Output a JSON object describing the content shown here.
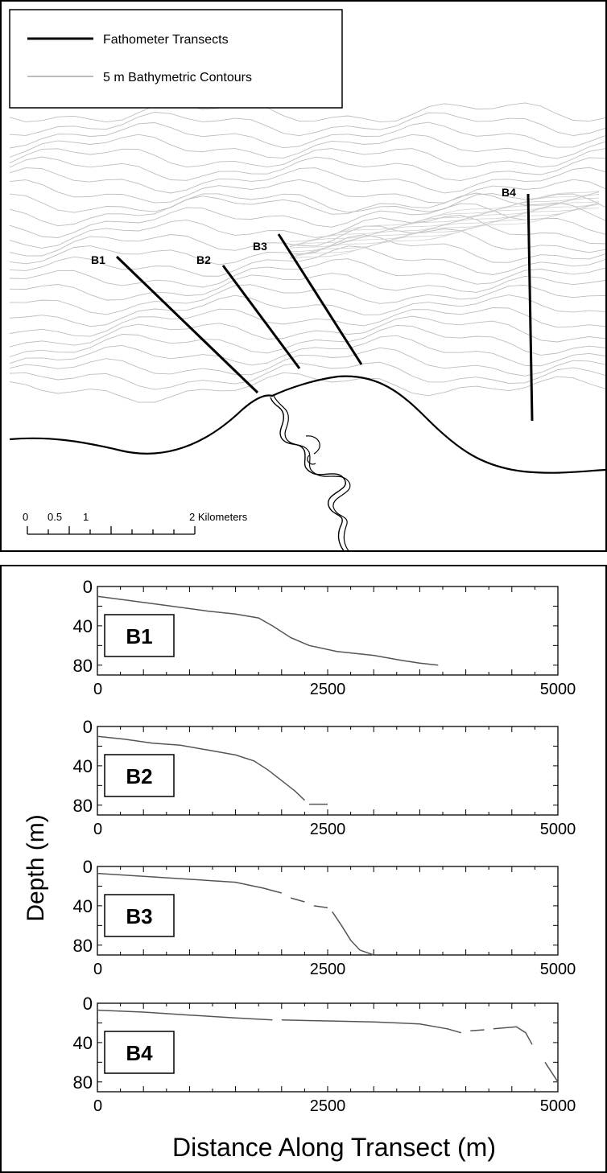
{
  "map": {
    "legend": {
      "items": [
        {
          "label": "Fathometer Transects",
          "style": "transect"
        },
        {
          "label": "5 m Bathymetric Contours",
          "style": "contour"
        }
      ]
    },
    "transects": [
      {
        "id": "B1",
        "label": "B1"
      },
      {
        "id": "B2",
        "label": "B2"
      },
      {
        "id": "B3",
        "label": "B3"
      },
      {
        "id": "B4",
        "label": "B4"
      }
    ],
    "scale_bar": {
      "ticks": [
        "0",
        "0.5",
        "1"
      ],
      "end_label": "2 Kilometers"
    },
    "colors": {
      "contour": "#bdbdbd",
      "transect": "#000000",
      "coast": "#000000"
    }
  },
  "chart_data": {
    "type": "line",
    "ylabel": "Depth (m)",
    "xlabel": "Distance Along Transect (m)",
    "xlim": [
      0,
      5000
    ],
    "ylim": [
      0,
      90
    ],
    "y_inverted": true,
    "x_ticks": [
      "0",
      "2500",
      "5000"
    ],
    "y_ticks": [
      "0",
      "40",
      "80"
    ],
    "panels": [
      {
        "name": "B1",
        "segments": [
          [
            [
              0,
              10
            ],
            [
              400,
              15
            ],
            [
              800,
              20
            ],
            [
              1200,
              25
            ],
            [
              1500,
              28
            ],
            [
              1750,
              32
            ],
            [
              1900,
              40
            ],
            [
              2100,
              52
            ],
            [
              2300,
              60
            ],
            [
              2600,
              66
            ],
            [
              3000,
              70
            ],
            [
              3300,
              75
            ],
            [
              3500,
              78
            ],
            [
              3700,
              80
            ]
          ]
        ]
      },
      {
        "name": "B2",
        "segments": [
          [
            [
              0,
              10
            ],
            [
              300,
              13
            ],
            [
              600,
              17
            ],
            [
              900,
              19
            ],
            [
              1200,
              24
            ],
            [
              1500,
              29
            ],
            [
              1700,
              35
            ],
            [
              1850,
              44
            ],
            [
              2000,
              55
            ],
            [
              2150,
              66
            ],
            [
              2250,
              75
            ]
          ],
          [
            [
              2300,
              79
            ],
            [
              2500,
              79
            ]
          ]
        ]
      },
      {
        "name": "B3",
        "segments": [
          [
            [
              0,
              7
            ],
            [
              500,
              10
            ],
            [
              1000,
              13
            ],
            [
              1500,
              16
            ],
            [
              1800,
              22
            ],
            [
              2000,
              27
            ]
          ],
          [
            [
              2100,
              32
            ],
            [
              2250,
              36
            ]
          ],
          [
            [
              2350,
              40
            ],
            [
              2500,
              42
            ]
          ],
          [
            [
              2550,
              46
            ],
            [
              2650,
              60
            ],
            [
              2750,
              75
            ],
            [
              2850,
              85
            ],
            [
              3000,
              90
            ]
          ]
        ]
      },
      {
        "name": "B4",
        "segments": [
          [
            [
              0,
              7
            ],
            [
              500,
              9
            ],
            [
              1000,
              12
            ],
            [
              1500,
              15
            ],
            [
              1900,
              17
            ]
          ],
          [
            [
              2000,
              17
            ],
            [
              2500,
              18
            ],
            [
              3000,
              19
            ],
            [
              3500,
              21
            ],
            [
              3800,
              26
            ],
            [
              3950,
              30
            ]
          ],
          [
            [
              4050,
              28
            ],
            [
              4200,
              27
            ]
          ],
          [
            [
              4300,
              26
            ],
            [
              4550,
              24
            ],
            [
              4650,
              30
            ],
            [
              4720,
              42
            ]
          ],
          [
            [
              4860,
              60
            ],
            [
              5000,
              80
            ]
          ]
        ]
      }
    ]
  }
}
